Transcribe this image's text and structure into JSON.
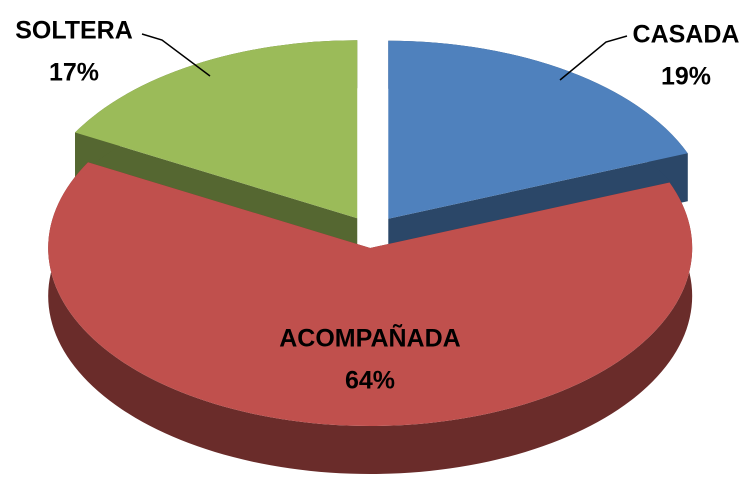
{
  "chart_data": {
    "type": "pie",
    "categories": [
      "CASADA",
      "ACOMPAÑADA",
      "SOLTERA"
    ],
    "values": [
      19,
      64,
      17
    ],
    "value_labels": [
      "19%",
      "64%",
      "17%"
    ],
    "colors": [
      "#4f81bd",
      "#c0504d",
      "#9bbb59"
    ]
  }
}
